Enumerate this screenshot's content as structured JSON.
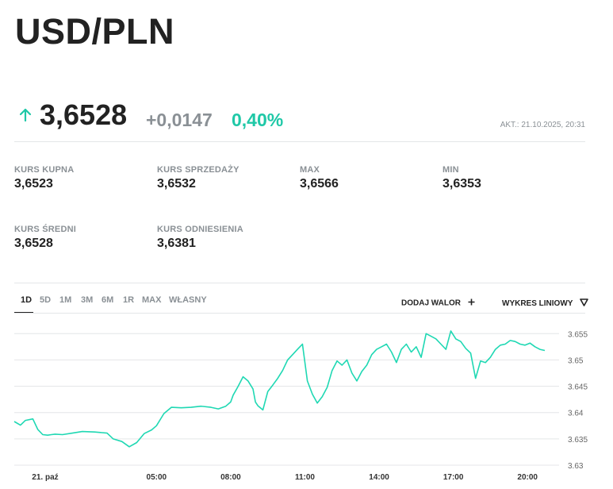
{
  "header": {
    "title": "USD/PLN"
  },
  "quote": {
    "price": "3,6528",
    "change": "+0,0147",
    "change_percent": "0,40%",
    "updated": "AKT.: 21.10.2025, 20:31",
    "trend_icon": "arrow-up-icon",
    "up_color": "#1fc8a7"
  },
  "stats": {
    "buy": {
      "label": "KURS KUPNA",
      "value": "3,6523"
    },
    "sell": {
      "label": "KURS SPRZEDAŻY",
      "value": "3,6532"
    },
    "max": {
      "label": "MAX",
      "value": "3,6566"
    },
    "min": {
      "label": "MIN",
      "value": "3,6353"
    },
    "avg": {
      "label": "KURS ŚREDNI",
      "value": "3,6528"
    },
    "ref": {
      "label": "KURS ODNIESIENIA",
      "value": "3,6381"
    }
  },
  "chart_controls": {
    "ranges": [
      "1D",
      "5D",
      "1M",
      "3M",
      "6M",
      "1R",
      "MAX",
      "WŁASNY"
    ],
    "active_range": "1D",
    "add_label": "DODAJ WALOR",
    "add_icon": "plus-icon",
    "chart_type_label": "WYKRES LINIOWY",
    "chart_type_icon": "triangle-down-icon"
  },
  "chart_data": {
    "type": "line",
    "title": "",
    "xlabel": "",
    "ylabel": "",
    "line_color": "#1fd8b3",
    "ylim": [
      3.63,
      3.657
    ],
    "y_ticks": [
      3.655,
      3.65,
      3.645,
      3.64,
      3.635,
      3.63
    ],
    "y_tick_labels": [
      "3.655",
      "3.65",
      "3.645",
      "3.64",
      "3.635",
      "3.63"
    ],
    "x_ticks": [
      {
        "label": "21. paź",
        "hour": 0.5
      },
      {
        "label": "05:00",
        "hour": 5
      },
      {
        "label": "08:00",
        "hour": 8
      },
      {
        "label": "11:00",
        "hour": 11
      },
      {
        "label": "14:00",
        "hour": 14
      },
      {
        "label": "17:00",
        "hour": 17
      },
      {
        "label": "20:00",
        "hour": 20
      }
    ],
    "xlim": [
      -0.75,
      21.5
    ],
    "grid": "horizontal",
    "series": [
      {
        "x": [
          -0.75,
          -0.5,
          -0.3,
          0,
          0.2,
          0.4,
          0.6,
          0.75,
          0.9,
          1.2,
          1.6,
          2.0,
          2.5,
          3.0,
          3.25,
          3.6,
          3.9,
          4.2,
          4.5,
          4.8,
          5.0,
          5.3,
          5.6,
          6.0,
          6.4,
          6.8,
          7.2,
          7.5,
          7.8,
          8.0,
          8.1,
          8.3,
          8.5,
          8.7,
          8.9,
          9.0,
          9.1,
          9.3,
          9.5,
          9.7,
          9.9,
          10.1,
          10.3,
          10.5,
          10.7,
          10.9,
          11.1,
          11.3,
          11.5,
          11.7,
          11.9,
          12.1,
          12.3,
          12.5,
          12.7,
          12.9,
          13.1,
          13.3,
          13.5,
          13.7,
          13.9,
          14.1,
          14.3,
          14.5,
          14.7,
          14.9,
          15.1,
          15.3,
          15.5,
          15.7,
          15.9,
          16.1,
          16.3,
          16.5,
          16.7,
          16.9,
          17.1,
          17.3,
          17.5,
          17.7,
          17.9,
          18.1,
          18.3,
          18.5,
          18.7,
          18.9,
          19.1,
          19.3,
          19.5,
          19.7,
          19.9,
          20.1,
          20.3,
          20.5,
          20.7
        ],
        "y": [
          3.6383,
          3.6376,
          3.6385,
          3.6388,
          3.6368,
          3.6358,
          3.6357,
          3.6358,
          3.6359,
          3.6358,
          3.6361,
          3.6364,
          3.6363,
          3.6361,
          3.635,
          3.6345,
          3.6335,
          3.6343,
          3.636,
          3.6367,
          3.6375,
          3.6398,
          3.641,
          3.6409,
          3.641,
          3.6412,
          3.641,
          3.6407,
          3.6412,
          3.642,
          3.6433,
          3.645,
          3.6468,
          3.646,
          3.6445,
          3.642,
          3.6413,
          3.6405,
          3.644,
          3.6452,
          3.6465,
          3.648,
          3.65,
          3.651,
          3.652,
          3.653,
          3.646,
          3.6435,
          3.6418,
          3.643,
          3.6448,
          3.648,
          3.6498,
          3.649,
          3.65,
          3.6475,
          3.646,
          3.6478,
          3.649,
          3.651,
          3.652,
          3.6525,
          3.653,
          3.6515,
          3.6495,
          3.652,
          3.653,
          3.6515,
          3.6525,
          3.6505,
          3.655,
          3.6545,
          3.654,
          3.653,
          3.652,
          3.6555,
          3.654,
          3.6535,
          3.6522,
          3.6513,
          3.6465,
          3.6498,
          3.6495,
          3.6505,
          3.652,
          3.6528,
          3.653,
          3.6537,
          3.6535,
          3.653,
          3.6528,
          3.6532,
          3.6525,
          3.652,
          3.6518
        ]
      }
    ]
  }
}
